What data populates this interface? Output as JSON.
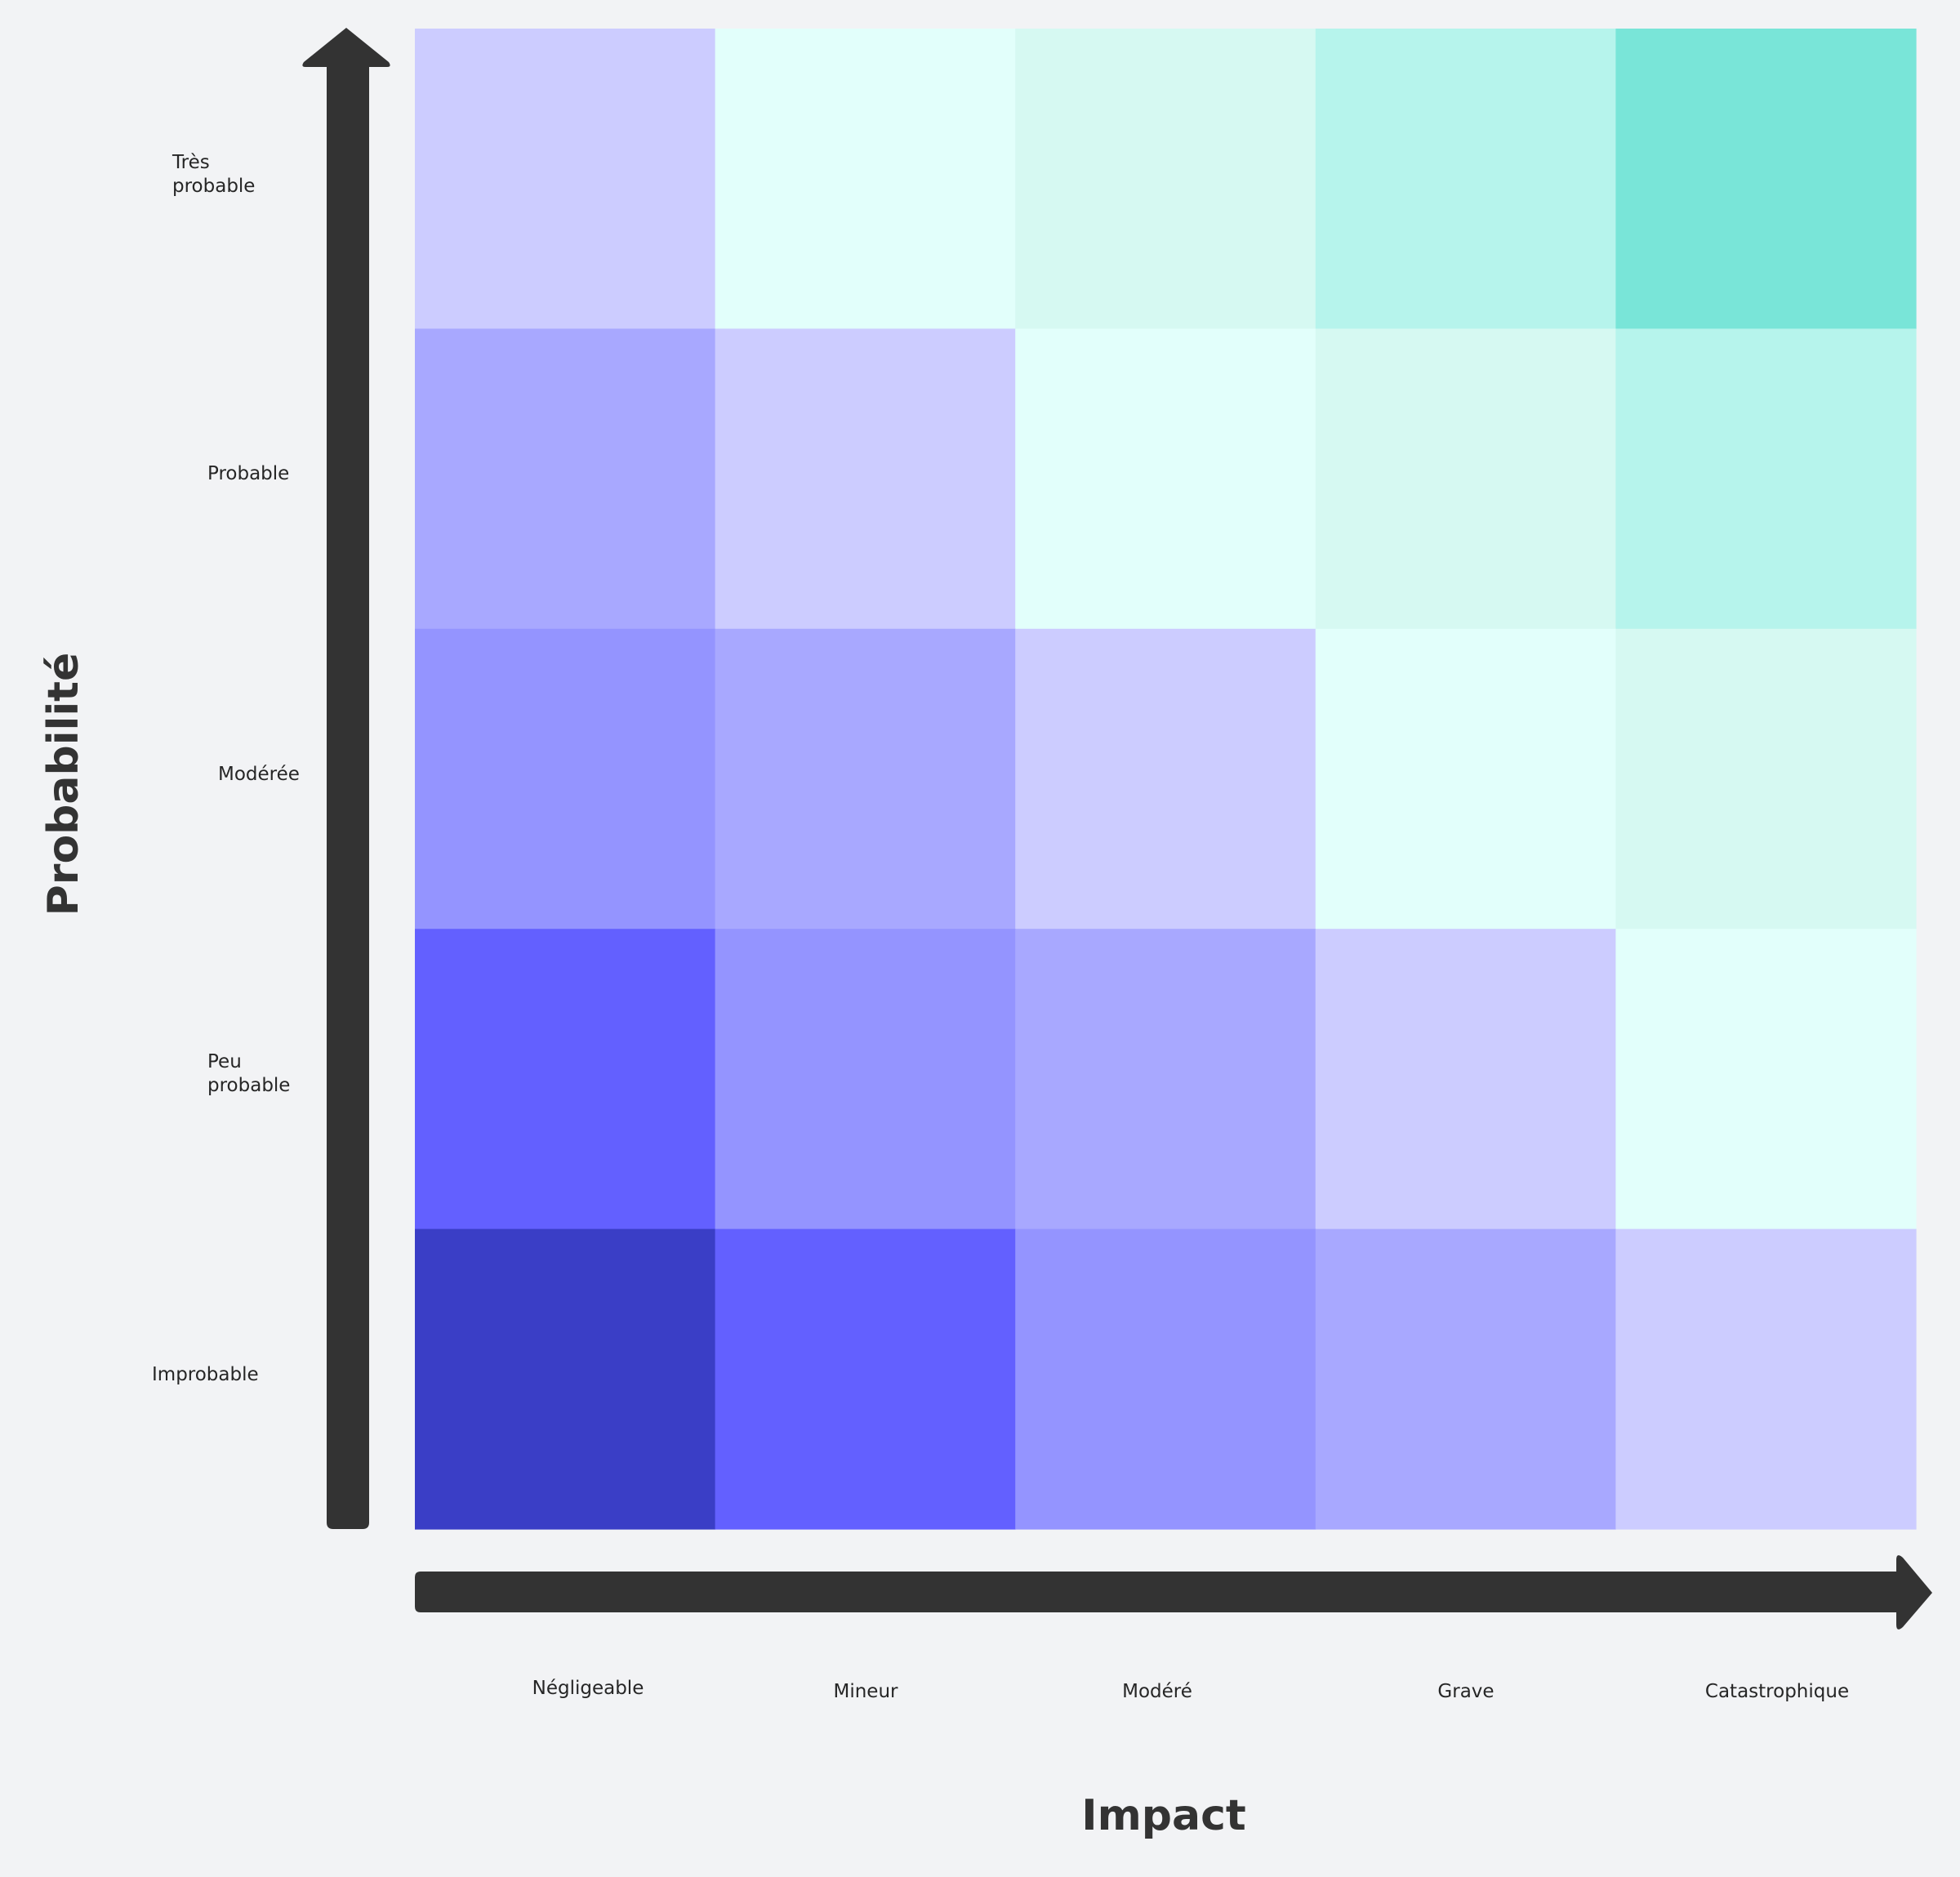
{
  "chart_data": {
    "type": "heatmap",
    "title": "",
    "xlabel": "Impact",
    "ylabel": "Probabilité",
    "x_categories": [
      "Négligeable",
      "Mineur",
      "Modéré",
      "Grave",
      "Catastrophique"
    ],
    "y_categories": [
      "Très probable",
      "Probable",
      "Modérée",
      "Peu probable",
      "Improbable"
    ],
    "y_category_lines": [
      [
        "Très",
        "probable"
      ],
      [
        "Probable"
      ],
      [
        "Modérée"
      ],
      [
        "Peu",
        "probable"
      ],
      [
        "Improbable"
      ]
    ],
    "cells": [
      [
        "#ccccff",
        "#e2fffb",
        "#d6f9f2",
        "#b6f4ec",
        "#79e5d8"
      ],
      [
        "#a8a8ff",
        "#ccccff",
        "#e2fffb",
        "#d6f9f2",
        "#b6f4ec"
      ],
      [
        "#9494ff",
        "#a8a8ff",
        "#ccccff",
        "#e2fffb",
        "#d6f9f2"
      ],
      [
        "#6360ff",
        "#9494ff",
        "#a8a8ff",
        "#ccccff",
        "#e2fffb"
      ],
      [
        "#3a3ec6",
        "#6360ff",
        "#9494ff",
        "#a8a8ff",
        "#ccccff"
      ]
    ],
    "grid": false,
    "legend": "none"
  },
  "colors": {
    "background": "#f2f3f5",
    "axis": "#333333",
    "text": "#262626"
  }
}
